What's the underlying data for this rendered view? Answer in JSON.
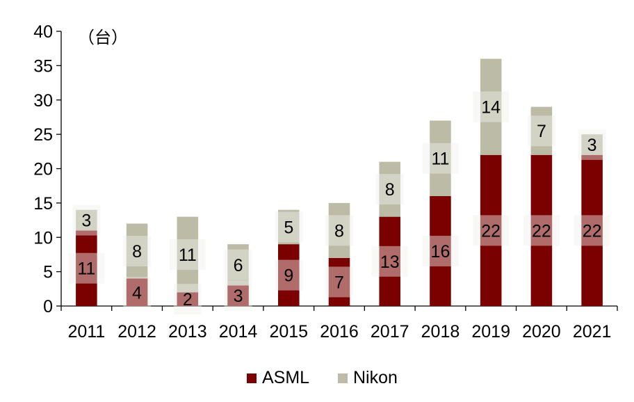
{
  "chart_data": {
    "type": "bar",
    "stacked": true,
    "title": "",
    "unit_label": "（台）",
    "xlabel": "",
    "ylabel": "",
    "ylim": [
      0,
      40
    ],
    "yticks": [
      0,
      5,
      10,
      15,
      20,
      25,
      30,
      35,
      40
    ],
    "grid": false,
    "legend_position": "bottom",
    "categories": [
      "2011",
      "2012",
      "2013",
      "2014",
      "2015",
      "2016",
      "2017",
      "2018",
      "2019",
      "2020",
      "2021"
    ],
    "series": [
      {
        "name": "ASML",
        "color": "#7b0000",
        "values": [
          11,
          4,
          2,
          3,
          9,
          7,
          13,
          16,
          22,
          22,
          22
        ]
      },
      {
        "name": "Nikon",
        "color": "#bcbca6",
        "values": [
          3,
          8,
          11,
          6,
          5,
          8,
          8,
          11,
          14,
          7,
          3
        ]
      }
    ],
    "label_box_color": "#f0f0ec"
  }
}
